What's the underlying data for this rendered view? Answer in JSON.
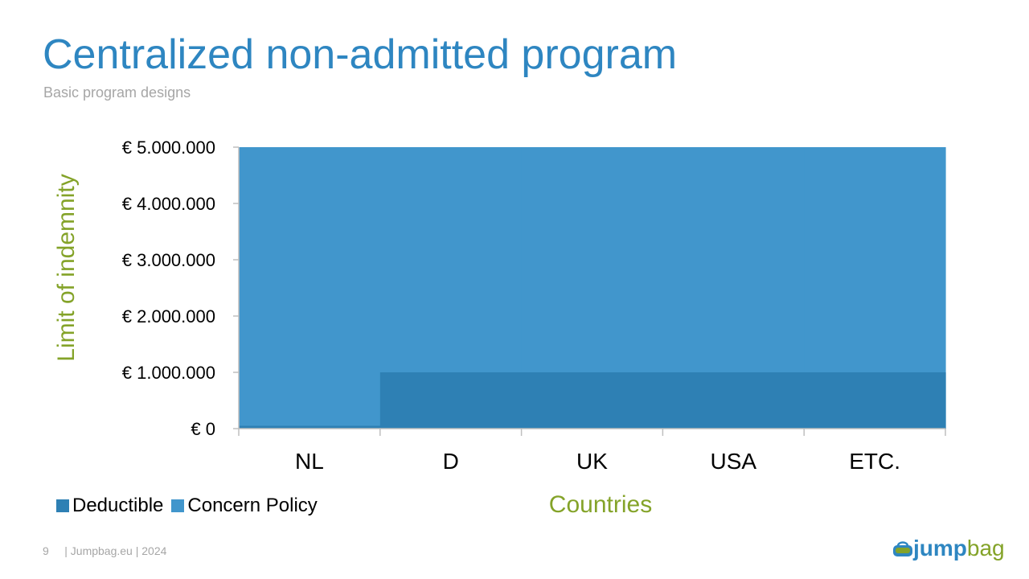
{
  "slide": {
    "title": "Centralized non-admitted program",
    "subtitle": "Basic program designs",
    "page_number": "9",
    "footer_text": "| Jumpbag.eu | 2024",
    "logo": {
      "part1": "jump",
      "part2": "bag",
      "icon": "bag-icon"
    }
  },
  "colors": {
    "title": "#2e86c1",
    "axis_label": "#84a329",
    "concern_policy": "#4196cc",
    "deductible": "#2e80b4",
    "footer": "#a6a6a6"
  },
  "chart_data": {
    "type": "area",
    "categories": [
      "NL",
      "D",
      "UK",
      "USA",
      "ETC."
    ],
    "series": [
      {
        "name": "Deductible",
        "values": [
          50000,
          1000000,
          1000000,
          1000000,
          1000000
        ],
        "color": "#2e80b4"
      },
      {
        "name": "Concern Policy",
        "values": [
          5000000,
          5000000,
          5000000,
          5000000,
          5000000
        ],
        "color": "#4196cc"
      }
    ],
    "xlabel": "Countries",
    "ylabel": "Limit of indemnity",
    "ylim": [
      0,
      5000000
    ],
    "yticks": [
      0,
      1000000,
      2000000,
      3000000,
      4000000,
      5000000
    ],
    "ytick_labels": [
      "€ 0",
      "€ 1.000.000",
      "€ 2.000.000",
      "€ 3.000.000",
      "€ 4.000.000",
      "€ 5.000.000"
    ],
    "grid": false,
    "legend": "bottom-left"
  }
}
